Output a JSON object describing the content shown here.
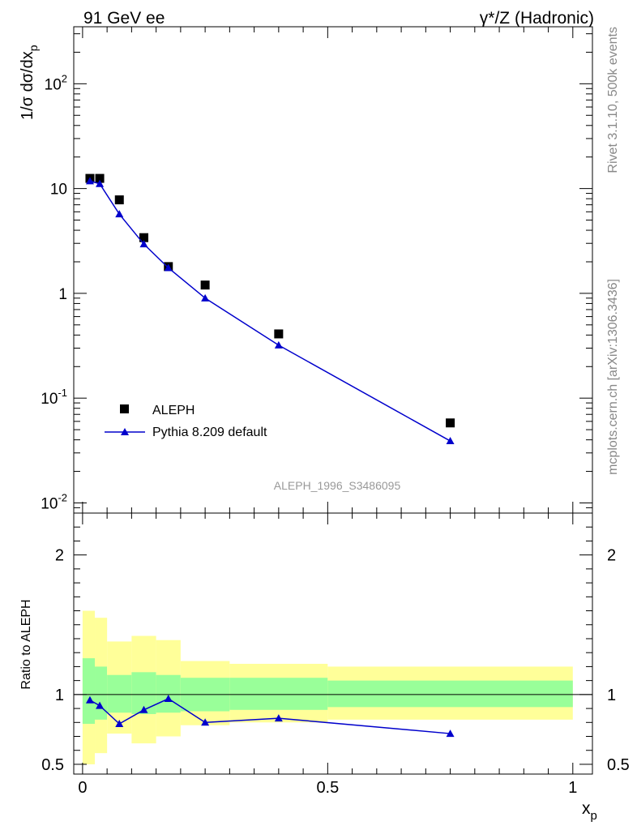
{
  "header": {
    "left_title": "91 GeV ee",
    "right_title": "γ*/Z (Hadronic)"
  },
  "side_labels": {
    "rivet": "Rivet 3.1.10,  500k events",
    "mcplots": "mcplots.cern.ch [arXiv:1306.3436]"
  },
  "watermark": "ALEPH_1996_S3486095",
  "colors": {
    "data": "#000000",
    "mc": "#0000cc",
    "band_inner": "#99ff99",
    "band_outer": "#ffff99"
  },
  "chart_data": [
    {
      "type": "scatter",
      "ylabel": "1/σ dσ/dx_p",
      "yscale": "log",
      "ylim": [
        0.008,
        350
      ],
      "xlim": [
        -0.018,
        1.04
      ],
      "y_tick_labels": [
        "10^-2",
        "10^-1",
        "1",
        "10",
        "10^2"
      ],
      "legend_position": "lower-left",
      "series": [
        {
          "name": "ALEPH",
          "style": "marker-square",
          "x": [
            0.015,
            0.035,
            0.075,
            0.125,
            0.175,
            0.25,
            0.4,
            0.75
          ],
          "y": [
            12.5,
            12.5,
            7.8,
            3.4,
            1.8,
            1.2,
            0.41,
            0.058
          ]
        },
        {
          "name": "Pythia 8.209 default",
          "style": "line-triangle",
          "x": [
            0.015,
            0.035,
            0.075,
            0.125,
            0.175,
            0.25,
            0.4,
            0.75
          ],
          "y": [
            11.8,
            11.1,
            5.7,
            2.95,
            1.75,
            0.9,
            0.32,
            0.039
          ]
        }
      ]
    },
    {
      "type": "line",
      "xlabel": "x_p",
      "ylabel": "Ratio to ALEPH",
      "xlim": [
        -0.018,
        1.04
      ],
      "ylim": [
        0.43,
        2.3
      ],
      "x_tick_labels": [
        "0",
        "0.5",
        "1"
      ],
      "y_tick_labels": [
        "0.5",
        "1",
        "2"
      ],
      "reference_line": 1.0,
      "bands": {
        "edges": [
          0.0,
          0.025,
          0.05,
          0.1,
          0.15,
          0.2,
          0.3,
          0.5,
          1.0
        ],
        "inner_low": [
          0.79,
          0.82,
          0.87,
          0.86,
          0.87,
          0.88,
          0.89,
          0.91
        ],
        "inner_high": [
          1.26,
          1.2,
          1.14,
          1.16,
          1.14,
          1.12,
          1.12,
          1.1
        ],
        "outer_low": [
          0.5,
          0.58,
          0.72,
          0.65,
          0.7,
          0.78,
          0.8,
          0.82
        ],
        "outer_high": [
          1.6,
          1.55,
          1.38,
          1.42,
          1.39,
          1.24,
          1.22,
          1.2
        ]
      },
      "series": [
        {
          "name": "Pythia 8.209 default",
          "x": [
            0.015,
            0.035,
            0.075,
            0.125,
            0.175,
            0.25,
            0.4,
            0.75
          ],
          "y": [
            0.96,
            0.92,
            0.79,
            0.89,
            0.97,
            0.8,
            0.83,
            0.72
          ]
        }
      ]
    }
  ]
}
